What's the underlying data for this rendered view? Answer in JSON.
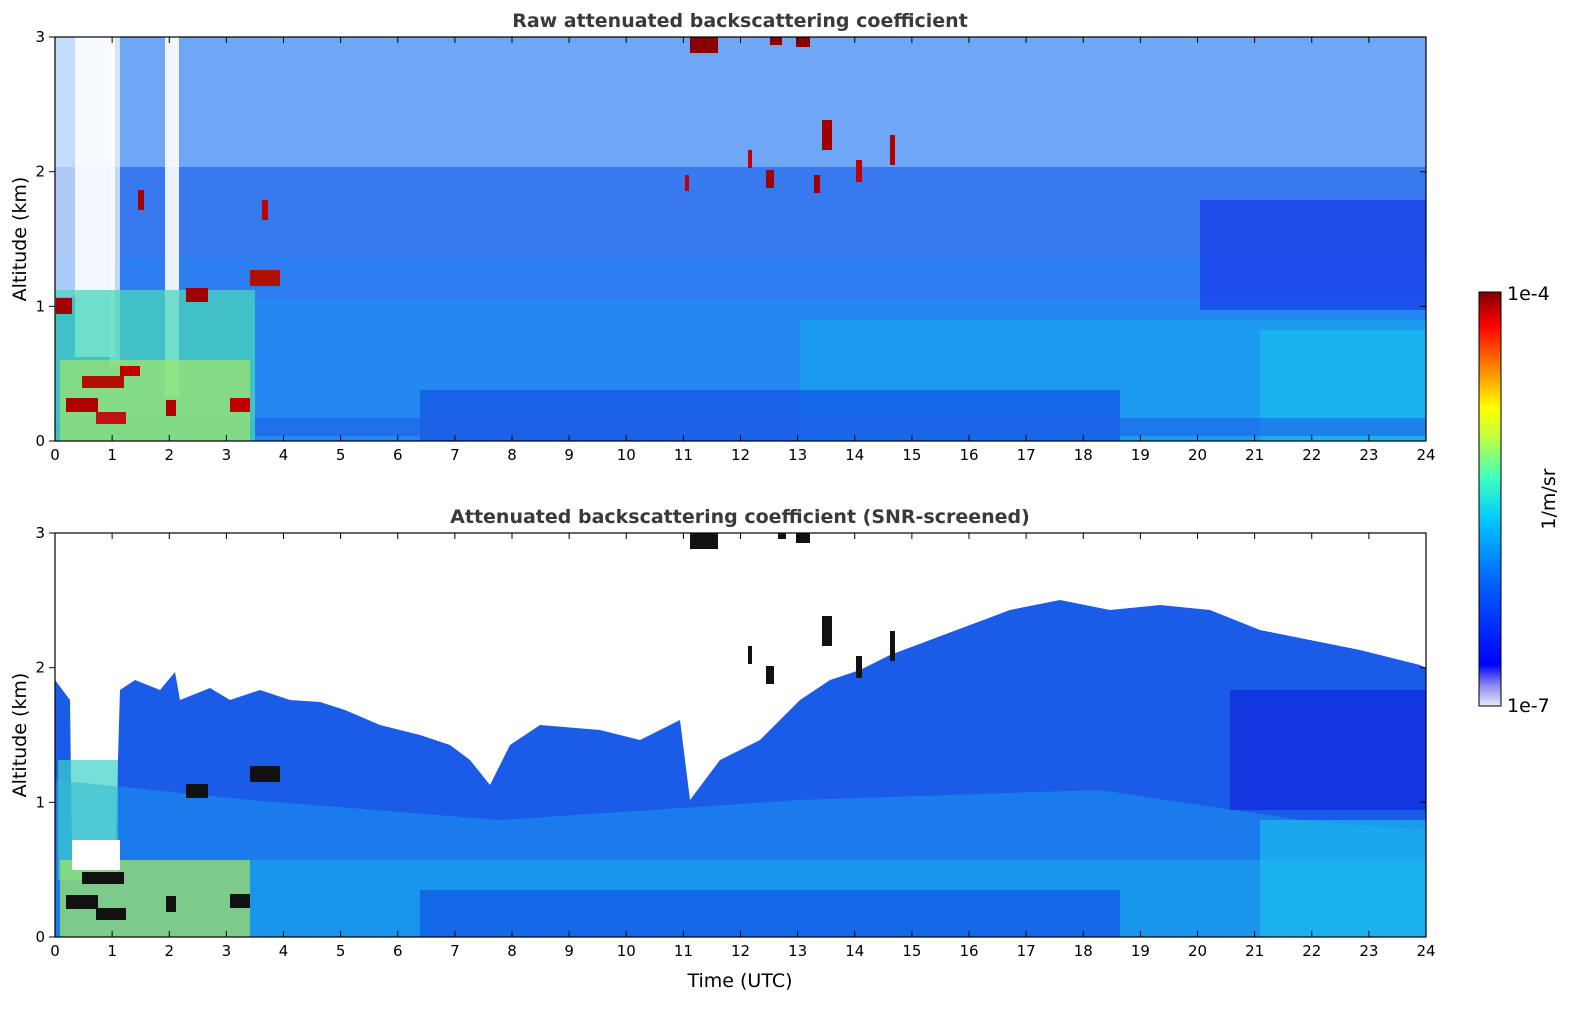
{
  "chart_data": [
    {
      "type": "heatmap",
      "title": "Raw attenuated backscattering coefficient",
      "xlabel": "",
      "ylabel": "Altitude (km)",
      "xlim": [
        0,
        24
      ],
      "ylim": [
        0,
        3
      ],
      "x_ticks": [
        "0",
        "1",
        "2",
        "3",
        "4",
        "5",
        "6",
        "7",
        "8",
        "9",
        "10",
        "11",
        "12",
        "13",
        "14",
        "15",
        "16",
        "17",
        "18",
        "19",
        "20",
        "21",
        "22",
        "23",
        "24"
      ],
      "y_ticks": [
        "0",
        "1",
        "2",
        "3"
      ],
      "screened": false,
      "grid": false
    },
    {
      "type": "heatmap",
      "title": "Attenuated backscattering coefficient (SNR-screened)",
      "xlabel": "Time (UTC)",
      "ylabel": "Altitude (km)",
      "xlim": [
        0,
        24
      ],
      "ylim": [
        0,
        3
      ],
      "x_ticks": [
        "0",
        "1",
        "2",
        "3",
        "4",
        "5",
        "6",
        "7",
        "8",
        "9",
        "10",
        "11",
        "12",
        "13",
        "14",
        "15",
        "16",
        "17",
        "18",
        "19",
        "20",
        "21",
        "22",
        "23",
        "24"
      ],
      "y_ticks": [
        "0",
        "1",
        "2",
        "3"
      ],
      "screened": true,
      "grid": false
    }
  ],
  "colorbar": {
    "label": "1/m/sr",
    "min_label": "1e-7",
    "max_label": "1e-4",
    "scale": "log",
    "colormap": [
      "#e8e8f6",
      "#0000ff",
      "#00b4ff",
      "#00ffff",
      "#7fff7f",
      "#ffff00",
      "#ff7f00",
      "#ff0000",
      "#800000"
    ]
  }
}
